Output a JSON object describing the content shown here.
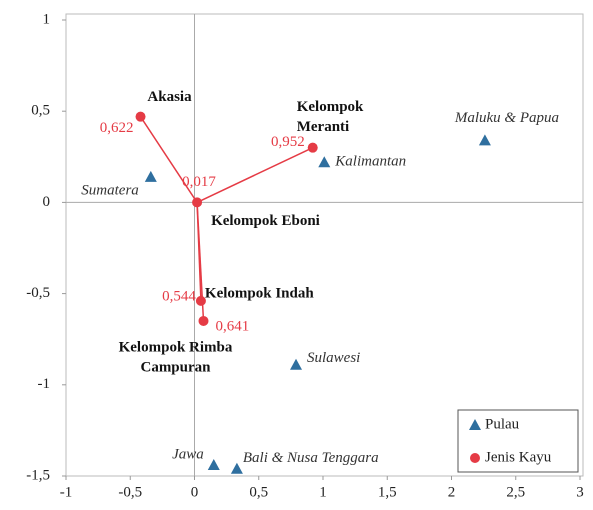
{
  "chart_data": {
    "type": "scatter",
    "xlim": [
      -1,
      3
    ],
    "ylim": [
      -1.5,
      1
    ],
    "xticks": [
      -1,
      {
        "value": -0.5,
        "label": "-0,5"
      },
      0,
      {
        "value": 0.5,
        "label": "0,5"
      },
      1,
      {
        "value": 1.5,
        "label": "1,5"
      },
      2,
      {
        "value": 2.5,
        "label": "2,5"
      },
      3
    ],
    "yticks": [
      {
        "value": -1.5,
        "label": "-1,5"
      },
      -1,
      {
        "value": -0.5,
        "label": "-0,5"
      },
      0,
      {
        "value": 0.5,
        "label": "0,5"
      },
      1
    ],
    "legend": "bottom-right",
    "series": [
      {
        "name": "Pulau",
        "color": "#2f6f9f",
        "marker": "triangle",
        "labels": [
          [
            "Sumatera"
          ],
          [
            "Kalimantan"
          ],
          [
            "Maluku & Papua"
          ],
          [
            "Sulawesi"
          ],
          [
            "Jawa"
          ],
          [
            "Bali & Nusa Tenggara"
          ]
        ],
        "x": [
          -0.34,
          1.01,
          2.26,
          0.79,
          0.15,
          0.33
        ],
        "y": [
          0.14,
          0.22,
          0.34,
          -0.89,
          -1.44,
          -1.46
        ]
      },
      {
        "name": "Jenis Kayu",
        "color": "#e53b45",
        "marker": "circle",
        "labels": [
          [
            "Akasia"
          ],
          [
            "Kelompok",
            "Meranti"
          ],
          [
            "Kelompok Eboni"
          ],
          [
            "Kelompok Indah"
          ],
          [
            "Kelompok Rimba",
            "Campuran"
          ]
        ],
        "notes": [
          "0,622",
          "0,952",
          "0,017",
          "0,544",
          "0,641"
        ],
        "x": [
          -0.42,
          0.92,
          0.02,
          0.05,
          0.07
        ],
        "y": [
          0.47,
          0.3,
          0.0,
          -0.54,
          -0.65
        ]
      }
    ]
  }
}
